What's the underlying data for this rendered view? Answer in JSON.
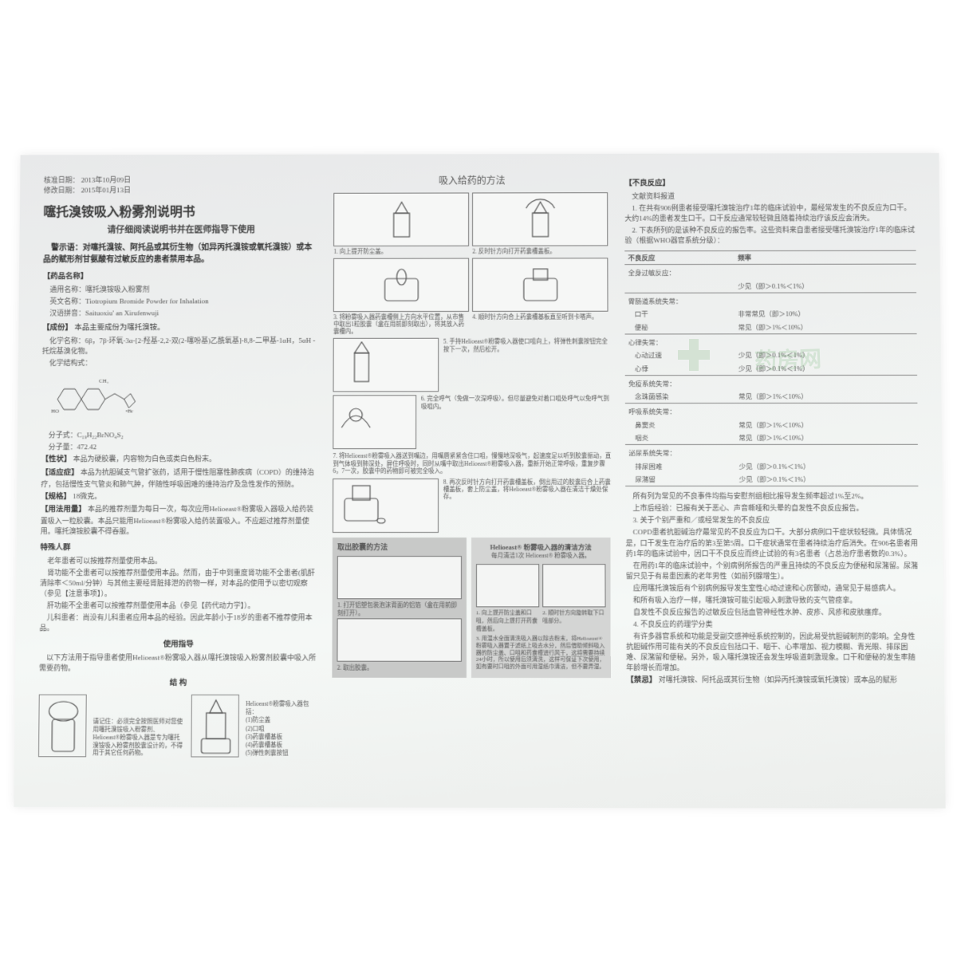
{
  "meta": {
    "approve_label": "核准日期：",
    "approve_date": "2013年10月09日",
    "revise_label": "修改日期：",
    "revise_date": "2015年01月13日"
  },
  "header": {
    "title": "噻托溴铵吸入粉雾剂说明书",
    "subtitle": "请仔细阅读说明书并在医师指导下使用",
    "warning": "警示语：对噻托溴铵、阿托品或其衍生物（如异丙托溴铵或氧托溴铵）或本品的赋形剂甘氨酸有过敏反应的患者禁用本品。"
  },
  "drug_name": {
    "section": "【药品名称】",
    "generic_label": "通用名称：",
    "generic": "噻托溴铵吸入粉雾剂",
    "english_label": "英文名称：",
    "english": "Tiotropium Bromide Powder for Inhalation",
    "pinyin_label": "汉语拼音：",
    "pinyin": "Saituoxiu' an Xirufenwuji"
  },
  "ingredient": {
    "section": "【成份】",
    "main": "本品主要成份为噻托溴铵。",
    "chem_label": "化学名称：",
    "chem": "6β，7β-环氧-3α-[2-羟基-2,2-双(2-噻吩基)乙酰氧基]-8,8-二甲基-1αH，5αH -托烷基溴化物。",
    "struct_label": "化学结构式：",
    "formula_label": "分子式：",
    "formula": "C₁₉H₂₂BrNO₄S₂",
    "weight_label": "分子量：",
    "weight": "472.42"
  },
  "character": {
    "section": "【性状】",
    "text": "本品为硬胶囊，内容物为白色或类白色粉末。"
  },
  "indication": {
    "section": "【适应症】",
    "text": "本品为抗胆碱支气管扩张药，适用于慢性阻塞性肺疾病（COPD）的维持治疗，包括慢性支气管炎和肺气肿，伴随性呼吸困难的维持治疗及急性发作的预防。"
  },
  "spec": {
    "section": "【规格】",
    "text": "18微克。"
  },
  "dosage": {
    "section": "【用法用量】",
    "text": "本品的推荐剂量为每日一次，每次应用Helioeast®粉雾吸入器吸入给药装置吸入一粒胶囊。本品只能用Helioeast®粉雾吸入给药装置吸入。不应超过推荐剂量使用。噻托溴铵胶囊不得吞服。"
  },
  "special": {
    "title": "特殊人群",
    "p1": "老年患者可以按推荐剂量使用本品。",
    "p2": "肾功能不全患者可以按推荐剂量使用本品。然而，由于中到重度肾功能不全患者(肌酐清除率＜50ml/分钟）与其他主要经肾脏排泄的药物一样，对本品的使用予以密切观察（参见【注意事项】）。",
    "p3": "肝功能不全患者可以按推荐剂量使用本品（参见【药代动力学】）。",
    "p4": "儿科患者：尚没有儿科患者应用本品的经验。因此年龄小于18岁的患者不推荐使用本品。"
  },
  "guide": {
    "title": "使用指导",
    "text": "以下方法用于指导患者使用Helioeast®粉雾吸入器从噻托溴铵吸入粉雾剂胶囊中吸入所需要药物。"
  },
  "structure": {
    "title": "结 构",
    "note": "请记住：必须完全按照医师对您使用噻托溴铵吸入粉雾剂、Helioeast®粉雾吸入器是专为噻托溴铵吸入粉雾剂胶囊设计的，不得用于其它任何药物。",
    "label": "Helioeast®粉雾吸入器包括：",
    "parts": [
      "(1)防尘盖",
      "(2)口咀",
      "(3)药囊槽基板",
      "(4)药囊槽基板",
      "(5)弹性刺囊按钮"
    ]
  },
  "method": {
    "title": "吸入给药的方法",
    "steps": [
      "1. 向上提开防尘盖。",
      "2. 反时针方向打开药囊槽盖板。",
      "3. 将粉雾吸入器药囊槽侧上方向水平位置，从市售中取出1粒胶囊（盒在用前即刻取出），将其放入药囊槽内。",
      "4. 顺时针方向合上药囊槽基板直至听到卡嗒声。",
      "5. 手持Helioeast®粉雾吸入器使口咀向上，将弹性刺囊按钮完全按下一次，然后松开。",
      "6. 完全呼气（免做一次深呼吸）。但尽量避免对着口咀处呼气以免呼气到吸咀内。",
      "7. 将Helioeast®粉雾吸入器送到嘴边，用嘴唇紧紧含住口咀，慢慢地深吸气，起速度足以听到胶囊振动，直到气体吸到肺深处，屏住呼吸时，同时从嘴中取出Helioeast®粉雾吸入器，重新开始正常呼吸，重复步骤6，7一次，胶囊中的药物即可被完全吸入。",
      "8. 再次反时针方向打开药囊槽盖板，倒出用过的胶囊后合上药囊槽盖板，套上防尘盖，将Helioeast®粉雾吸入器在清洁干燥处保存。"
    ],
    "extract_title": "取出胶囊的方法",
    "extract_steps": [
      "1. 打开铝塑包装泡沫背面的铝箔（盒在用前即刻打开）。",
      "2. 取出胶囊。"
    ],
    "clean_title": "Helioeast® 粉雾吸入器的清洁方法",
    "clean_sub": "每月清洁1次 Helioeast® 粉雾吸入器。",
    "clean_caps": [
      "1. 向上提开防尘盖和口咀，然后向上提打开药囊槽盖板。",
      "2. 顺时针方向旋转取下口咀部分。"
    ],
    "clean_note": "3. 用温水全面清洗吸入器以除去粉末，将Helioeast®粉雾吸入器置于滤纸上吸去水分，然后借助倾斜吸入器的防尘盖、口咀和药囊槽进行风干，这将需要持续24小时，所以使用后须清洗，这样可保证下次使用，如有要时口咀的外面可用湿纸巾清洁，但不要弄湿。"
  },
  "adverse": {
    "section": "【不良反应】",
    "lit": "文献资料报道",
    "p1": "1. 在共有906例患者接受噻托溴铵治疗1年的临床试验中，最经常发生的不良反应为口干。大约14%的患者发生口干。口干反应通常较轻微且随着持续治疗该反应会消失。",
    "p2": "2. 下表所列的是该种不良反应的报告率。这些资料来自患者接受噻托溴铵治疗1年的临床试验（根据WHO器官系统分级）：",
    "table": {
      "headers": [
        "不良反应",
        "频率"
      ],
      "rows": [
        {
          "group": "全身过敏反应：",
          "items": [
            [
              "",
              "少见（即＞0.1%＜1%）"
            ]
          ]
        },
        {
          "group": "胃肠道系统失常：",
          "items": [
            [
              "口干",
              "非常常见（即＞10%）"
            ],
            [
              "便秘",
              "常见（即＞1%＜10%）"
            ]
          ]
        },
        {
          "group": "心律失常：",
          "items": [
            [
              "心动过速",
              "少见（即＞0.1%＜1%）"
            ],
            [
              "心悸",
              "少见（即＞0.1%＜1%）"
            ]
          ]
        },
        {
          "group": "免疫系统失常：",
          "items": [
            [
              "念珠菌感染",
              "常见（即＞1%＜10%）"
            ]
          ]
        },
        {
          "group": "呼吸系统失常：",
          "items": [
            [
              "鼻窦炎",
              "常见（即＞1%＜10%）"
            ],
            [
              "咽炎",
              "常见（即＞1%＜10%）"
            ]
          ]
        },
        {
          "group": "泌尿系统失常：",
          "items": [
            [
              "排尿困难",
              "少见（即＞0.1%＜1%）"
            ],
            [
              "尿潴留",
              "少见（即＞0.1%＜1%）"
            ]
          ]
        }
      ]
    },
    "p3": "所有列为常见的不良事件均指与安慰剂组相比报导发生频率超过1%至2%。",
    "p4": "上市后经验：已报有关于恶心、声音嘶哑和头晕的自发性不良反应报告。",
    "p5": "3. 关于个别严重和／或经常发生的不良反应",
    "p6": "COPD患者抗胆碱治疗最常见的不良反应为口干。大部分病例口干症状较轻微。具体情况是，口干发生在治疗后的第3至第5周。口干症状通常在患者持续治疗后消失。在906名患者用药1年的临床试验中，因口干不良反应而终止试验的有3名患者（占总治疗患者数的0.3%）。",
    "p7": "在用药1年的临床试验中，个别病例所报告的严重且持续的不良反应为便秘和尿潴留。尿潴留只见于有易患因素的老年男性（如前列腺增生）。",
    "p8": "应用噻托溴铵后有个别病例报导发生室性心动过速和心房颤动，通常见于易感病人。",
    "p9": "和所有吸入治疗一样，噻托溴铵可能引起吸入刺激导致的支气管痉挛。",
    "p10": "自发性不良反应报告的过敏反应包括血管神经性水肿、皮疹、风疹和皮肤瘙痒。",
    "p11": "4. 不良反应的药理学分类",
    "p12": "有许多器官系统和功能是受副交感神经系统控制的，因此易受抗胆碱制剂的影响。全身性抗胆碱作用可能有关的不良反应包括口干、咽干、心率增加、视力模糊、青光眼、排尿困难、尿潴留和便秘。另外，吸入噻托溴铵还会发生呼吸道刺激现象。口干和便秘的发生率随年龄增长而增加。"
  },
  "contra": {
    "section": "【禁忌】",
    "text": "对噻托溴铵、阿托品或其衍生物（如异丙托溴铵或氧托溴铵）或本品的赋形"
  },
  "watermark": "药房网"
}
